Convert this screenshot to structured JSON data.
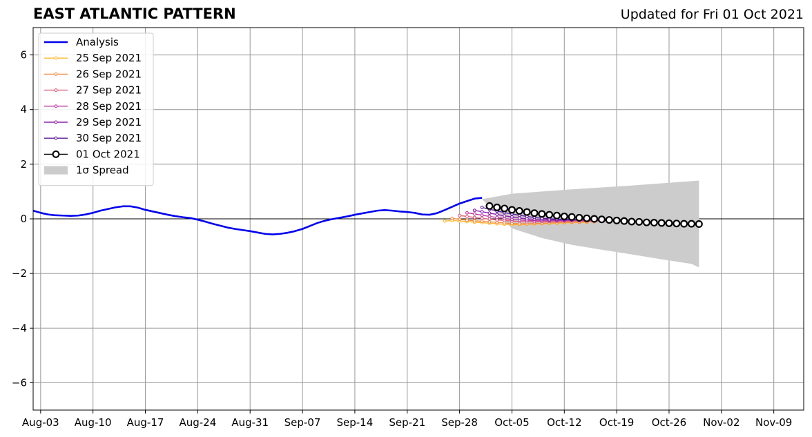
{
  "header": {
    "title": "EAST ATLANTIC PATTERN",
    "updated": "Updated for Fri 01 Oct 2021"
  },
  "chart_data": {
    "type": "line",
    "title": "EAST ATLANTIC PATTERN",
    "xlabel": "",
    "ylabel": "",
    "x_axis": {
      "type": "date",
      "range": [
        "2021-08-02",
        "2021-11-13"
      ],
      "ticks": [
        "2021-08-03",
        "2021-08-10",
        "2021-08-17",
        "2021-08-24",
        "2021-08-31",
        "2021-09-07",
        "2021-09-14",
        "2021-09-21",
        "2021-09-28",
        "2021-10-05",
        "2021-10-12",
        "2021-10-19",
        "2021-10-26",
        "2021-11-02",
        "2021-11-09"
      ],
      "tick_labels": [
        "Aug-03",
        "Aug-10",
        "Aug-17",
        "Aug-24",
        "Aug-31",
        "Sep-07",
        "Sep-14",
        "Sep-21",
        "Sep-28",
        "Oct-05",
        "Oct-12",
        "Oct-19",
        "Oct-26",
        "Nov-02",
        "Nov-09"
      ]
    },
    "y_axis": {
      "range": [
        -7,
        7
      ],
      "ticks": [
        6,
        4,
        2,
        0,
        -2,
        -4,
        -6
      ],
      "tick_labels": [
        "6",
        "4",
        "2",
        "0",
        "−2",
        "−4",
        "−6"
      ]
    },
    "grid": true,
    "legend_position": "top-left",
    "analysis": {
      "name": "Analysis",
      "color": "#0000ee",
      "points": [
        [
          "2021-08-02",
          0.3
        ],
        [
          "2021-08-03",
          0.22
        ],
        [
          "2021-08-04",
          0.16
        ],
        [
          "2021-08-05",
          0.13
        ],
        [
          "2021-08-06",
          0.12
        ],
        [
          "2021-08-07",
          0.11
        ],
        [
          "2021-08-08",
          0.12
        ],
        [
          "2021-08-09",
          0.16
        ],
        [
          "2021-08-10",
          0.22
        ],
        [
          "2021-08-11",
          0.3
        ],
        [
          "2021-08-12",
          0.36
        ],
        [
          "2021-08-13",
          0.42
        ],
        [
          "2021-08-14",
          0.46
        ],
        [
          "2021-08-15",
          0.46
        ],
        [
          "2021-08-16",
          0.41
        ],
        [
          "2021-08-17",
          0.33
        ],
        [
          "2021-08-18",
          0.27
        ],
        [
          "2021-08-19",
          0.21
        ],
        [
          "2021-08-20",
          0.15
        ],
        [
          "2021-08-21",
          0.1
        ],
        [
          "2021-08-22",
          0.06
        ],
        [
          "2021-08-23",
          0.03
        ],
        [
          "2021-08-24",
          -0.03
        ],
        [
          "2021-08-25",
          -0.1
        ],
        [
          "2021-08-26",
          -0.18
        ],
        [
          "2021-08-27",
          -0.25
        ],
        [
          "2021-08-28",
          -0.32
        ],
        [
          "2021-08-29",
          -0.37
        ],
        [
          "2021-08-30",
          -0.41
        ],
        [
          "2021-08-31",
          -0.45
        ],
        [
          "2021-09-01",
          -0.5
        ],
        [
          "2021-09-02",
          -0.55
        ],
        [
          "2021-09-03",
          -0.57
        ],
        [
          "2021-09-04",
          -0.55
        ],
        [
          "2021-09-05",
          -0.51
        ],
        [
          "2021-09-06",
          -0.45
        ],
        [
          "2021-09-07",
          -0.37
        ],
        [
          "2021-09-08",
          -0.26
        ],
        [
          "2021-09-09",
          -0.15
        ],
        [
          "2021-09-10",
          -0.07
        ],
        [
          "2021-09-11",
          -0.01
        ],
        [
          "2021-09-12",
          0.04
        ],
        [
          "2021-09-13",
          0.09
        ],
        [
          "2021-09-14",
          0.15
        ],
        [
          "2021-09-15",
          0.2
        ],
        [
          "2021-09-16",
          0.25
        ],
        [
          "2021-09-17",
          0.3
        ],
        [
          "2021-09-18",
          0.32
        ],
        [
          "2021-09-19",
          0.3
        ],
        [
          "2021-09-20",
          0.27
        ],
        [
          "2021-09-21",
          0.25
        ],
        [
          "2021-09-22",
          0.22
        ],
        [
          "2021-09-23",
          0.16
        ],
        [
          "2021-09-24",
          0.15
        ],
        [
          "2021-09-25",
          0.21
        ],
        [
          "2021-09-26",
          0.32
        ],
        [
          "2021-09-27",
          0.44
        ],
        [
          "2021-09-28",
          0.56
        ],
        [
          "2021-09-29",
          0.65
        ],
        [
          "2021-09-30",
          0.74
        ],
        [
          "2021-10-01",
          0.77
        ]
      ]
    },
    "forecasts": [
      {
        "name": "25 Sep 2021",
        "color": "#ffb82b",
        "start": "2021-09-26",
        "values": [
          -0.08,
          -0.06,
          -0.08,
          -0.1,
          -0.12,
          -0.14,
          -0.16,
          -0.18,
          -0.2,
          -0.21,
          -0.21,
          -0.2,
          -0.19,
          -0.18,
          -0.17,
          -0.16,
          -0.15,
          -0.14,
          -0.13,
          -0.13
        ]
      },
      {
        "name": "26 Sep 2021",
        "color": "#f58c42",
        "start": "2021-09-27",
        "values": [
          0.02,
          -0.02,
          -0.05,
          -0.07,
          -0.09,
          -0.11,
          -0.13,
          -0.15,
          -0.17,
          -0.18,
          -0.18,
          -0.17,
          -0.16,
          -0.15,
          -0.14,
          -0.13,
          -0.12,
          -0.12,
          -0.11,
          -0.11
        ]
      },
      {
        "name": "27 Sep 2021",
        "color": "#e0607a",
        "start": "2021-09-28",
        "values": [
          0.12,
          0.09,
          0.05,
          0.02,
          -0.01,
          -0.04,
          -0.06,
          -0.08,
          -0.1,
          -0.11,
          -0.11,
          -0.1,
          -0.1,
          -0.09,
          -0.09,
          -0.08,
          -0.08,
          -0.08,
          -0.08,
          -0.08
        ]
      },
      {
        "name": "28 Sep 2021",
        "color": "#c03ca0",
        "start": "2021-09-29",
        "values": [
          0.22,
          0.18,
          0.13,
          0.09,
          0.05,
          0.01,
          -0.02,
          -0.04,
          -0.06,
          -0.07,
          -0.07,
          -0.07,
          -0.07,
          -0.06,
          -0.06,
          -0.06,
          -0.06,
          -0.06,
          -0.06,
          -0.06
        ]
      },
      {
        "name": "29 Sep 2021",
        "color": "#8e20b0",
        "start": "2021-09-30",
        "values": [
          0.31,
          0.26,
          0.21,
          0.16,
          0.11,
          0.07,
          0.03,
          0.0,
          -0.02,
          -0.03,
          -0.04,
          -0.04,
          -0.04,
          -0.04,
          -0.04,
          -0.04,
          -0.04,
          -0.04,
          -0.04,
          -0.04
        ]
      },
      {
        "name": "30 Sep 2021",
        "color": "#5b1a9e",
        "start": "2021-10-01",
        "values": [
          0.42,
          0.35,
          0.29,
          0.23,
          0.18,
          0.13,
          0.09,
          0.05,
          0.02,
          0.0,
          -0.01,
          -0.02,
          -0.02,
          -0.02,
          -0.02,
          -0.02,
          -0.02,
          -0.02,
          -0.02,
          -0.02
        ]
      }
    ],
    "current_forecast": {
      "name": "01 Oct 2021",
      "color": "#000000",
      "start": "2021-10-02",
      "values": [
        0.47,
        0.42,
        0.38,
        0.33,
        0.29,
        0.25,
        0.21,
        0.18,
        0.15,
        0.12,
        0.09,
        0.07,
        0.04,
        0.02,
        0.0,
        -0.02,
        -0.04,
        -0.06,
        -0.08,
        -0.1,
        -0.11,
        -0.13,
        -0.14,
        -0.15,
        -0.16,
        -0.17,
        -0.18,
        -0.18,
        -0.19
      ]
    },
    "spread": {
      "name": "1σ Spread",
      "color": "#cccccc",
      "points": [
        [
          "2021-10-01",
          0.72,
          0.72
        ],
        [
          "2021-10-05",
          0.92,
          -0.35
        ],
        [
          "2021-10-09",
          1.0,
          -0.7
        ],
        [
          "2021-10-13",
          1.08,
          -0.95
        ],
        [
          "2021-10-17",
          1.15,
          -1.13
        ],
        [
          "2021-10-21",
          1.22,
          -1.3
        ],
        [
          "2021-10-25",
          1.3,
          -1.48
        ],
        [
          "2021-10-29",
          1.38,
          -1.65
        ],
        [
          "2021-10-30",
          1.4,
          -1.78
        ]
      ]
    },
    "legend": [
      {
        "label": "Analysis",
        "style": "analysis",
        "color": "#0000ee"
      },
      {
        "label": "25 Sep 2021",
        "style": "forecast",
        "color": "#ffb82b"
      },
      {
        "label": "26 Sep 2021",
        "style": "forecast",
        "color": "#f58c42"
      },
      {
        "label": "27 Sep 2021",
        "style": "forecast",
        "color": "#e0607a"
      },
      {
        "label": "28 Sep 2021",
        "style": "forecast",
        "color": "#c03ca0"
      },
      {
        "label": "29 Sep 2021",
        "style": "forecast",
        "color": "#8e20b0"
      },
      {
        "label": "30 Sep 2021",
        "style": "forecast",
        "color": "#5b1a9e"
      },
      {
        "label": "01 Oct 2021",
        "style": "current",
        "color": "#000000"
      },
      {
        "label": "1σ Spread",
        "style": "spread",
        "color": "#cccccc"
      }
    ]
  }
}
